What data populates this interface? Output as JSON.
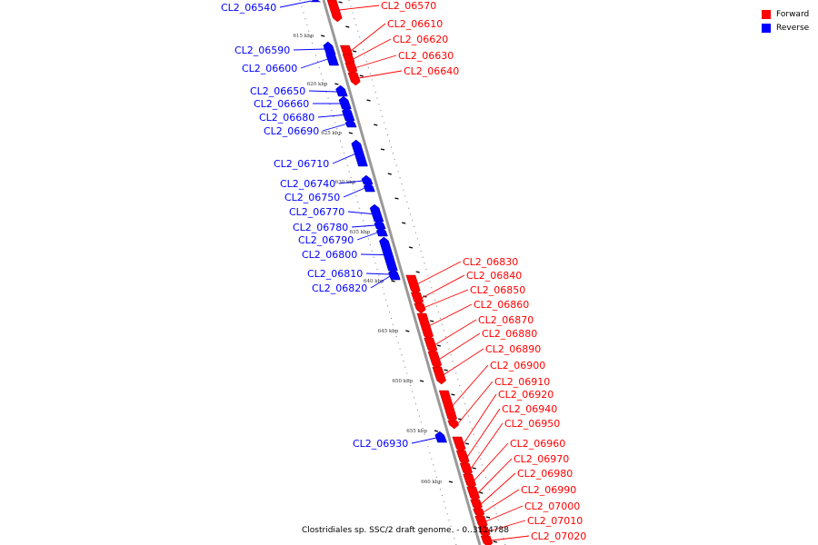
{
  "legend": {
    "forward": {
      "label": "Forward",
      "color": "#ff0000"
    },
    "reverse": {
      "label": "Reverse",
      "color": "#0000ff"
    }
  },
  "caption": "Clostridiales sp. SSC/2 draft genome. - 0..3114788",
  "axis_color": "#999999",
  "tick_labels": [
    "615 kbp",
    "620 kbp",
    "625 kbp",
    "630 kbp",
    "635 kbp",
    "640 kbp",
    "645 kbp",
    "650 kbp",
    "655 kbp",
    "660 kbp"
  ],
  "genes": [
    {
      "id": "CL2_06540",
      "strand": "reverse"
    },
    {
      "id": "CL2_06570",
      "strand": "forward"
    },
    {
      "id": "CL2_06590",
      "strand": "reverse"
    },
    {
      "id": "CL2_06600",
      "strand": "reverse"
    },
    {
      "id": "CL2_06610",
      "strand": "forward"
    },
    {
      "id": "CL2_06620",
      "strand": "forward"
    },
    {
      "id": "CL2_06630",
      "strand": "forward"
    },
    {
      "id": "CL2_06640",
      "strand": "forward"
    },
    {
      "id": "CL2_06650",
      "strand": "reverse"
    },
    {
      "id": "CL2_06660",
      "strand": "reverse"
    },
    {
      "id": "CL2_06680",
      "strand": "reverse"
    },
    {
      "id": "CL2_06690",
      "strand": "reverse"
    },
    {
      "id": "CL2_06710",
      "strand": "reverse"
    },
    {
      "id": "CL2_06740",
      "strand": "reverse"
    },
    {
      "id": "CL2_06750",
      "strand": "reverse"
    },
    {
      "id": "CL2_06770",
      "strand": "reverse"
    },
    {
      "id": "CL2_06780",
      "strand": "reverse"
    },
    {
      "id": "CL2_06790",
      "strand": "reverse"
    },
    {
      "id": "CL2_06800",
      "strand": "reverse"
    },
    {
      "id": "CL2_06810",
      "strand": "reverse"
    },
    {
      "id": "CL2_06820",
      "strand": "reverse"
    },
    {
      "id": "CL2_06830",
      "strand": "forward"
    },
    {
      "id": "CL2_06840",
      "strand": "forward"
    },
    {
      "id": "CL2_06850",
      "strand": "forward"
    },
    {
      "id": "CL2_06860",
      "strand": "forward"
    },
    {
      "id": "CL2_06870",
      "strand": "forward"
    },
    {
      "id": "CL2_06880",
      "strand": "forward"
    },
    {
      "id": "CL2_06890",
      "strand": "forward"
    },
    {
      "id": "CL2_06900",
      "strand": "forward"
    },
    {
      "id": "CL2_06910",
      "strand": "forward"
    },
    {
      "id": "CL2_06920",
      "strand": "forward"
    },
    {
      "id": "CL2_06930",
      "strand": "reverse"
    },
    {
      "id": "CL2_06940",
      "strand": "forward"
    },
    {
      "id": "CL2_06950",
      "strand": "forward"
    },
    {
      "id": "CL2_06960",
      "strand": "forward"
    },
    {
      "id": "CL2_06970",
      "strand": "forward"
    },
    {
      "id": "CL2_06980",
      "strand": "forward"
    },
    {
      "id": "CL2_06990",
      "strand": "forward"
    },
    {
      "id": "CL2_07000",
      "strand": "forward"
    },
    {
      "id": "CL2_07010",
      "strand": "forward"
    },
    {
      "id": "CL2_07020",
      "strand": "forward"
    }
  ]
}
